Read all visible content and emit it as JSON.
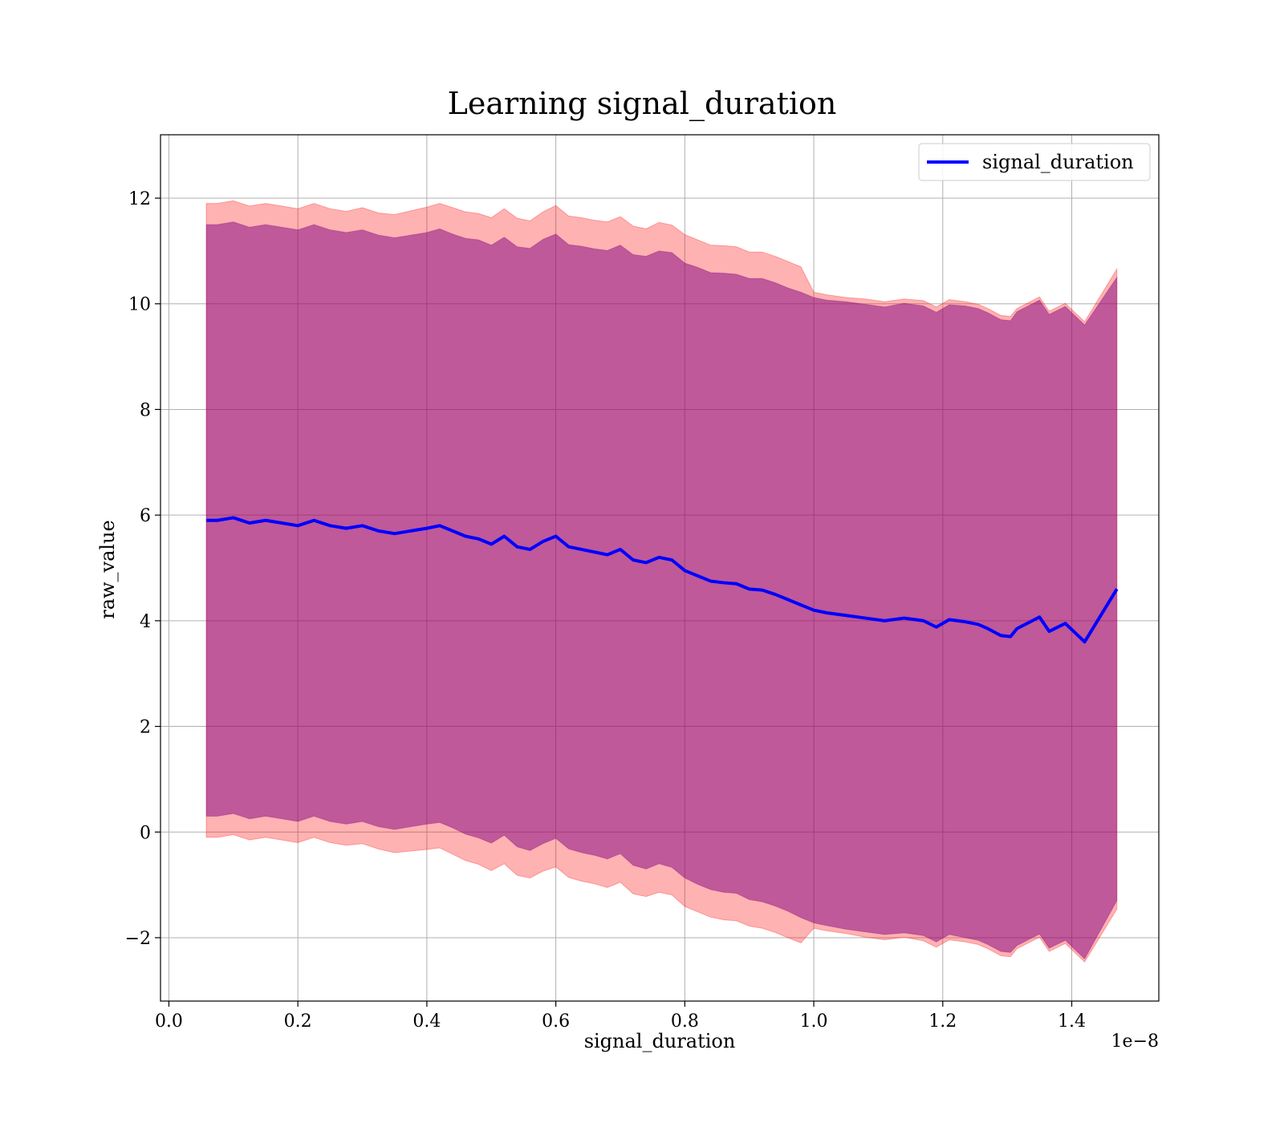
{
  "chart_data": {
    "type": "line",
    "title": "Learning signal_duration",
    "xlabel": "signal_duration",
    "ylabel": "raw_value",
    "x_offset_label": "1e−8",
    "x_scale": 1e-08,
    "xlim": [
      -0.013,
      1.535
    ],
    "ylim": [
      -3.2,
      13.2
    ],
    "x_ticks": [
      0.0,
      0.2,
      0.4,
      0.6,
      0.8,
      1.0,
      1.2,
      1.4
    ],
    "x_tick_labels": [
      "0.0",
      "0.2",
      "0.4",
      "0.6",
      "0.8",
      "1.0",
      "1.2",
      "1.4"
    ],
    "y_ticks": [
      -2,
      0,
      2,
      4,
      6,
      8,
      10,
      12
    ],
    "y_tick_labels": [
      "−2",
      "0",
      "2",
      "4",
      "6",
      "8",
      "10",
      "12"
    ],
    "grid": true,
    "legend_position": "top-right",
    "colors": {
      "line": "#0000ff",
      "band": "#ff0000",
      "inner_band": "#800080"
    },
    "series": [
      {
        "name": "signal_duration",
        "x": [
          0.058,
          0.075,
          0.1,
          0.125,
          0.15,
          0.175,
          0.2,
          0.225,
          0.25,
          0.275,
          0.3,
          0.325,
          0.35,
          0.375,
          0.4,
          0.42,
          0.44,
          0.46,
          0.48,
          0.5,
          0.52,
          0.54,
          0.56,
          0.58,
          0.6,
          0.62,
          0.64,
          0.66,
          0.68,
          0.7,
          0.72,
          0.74,
          0.76,
          0.78,
          0.8,
          0.82,
          0.84,
          0.86,
          0.88,
          0.9,
          0.92,
          0.94,
          0.96,
          0.98,
          1.0,
          1.02,
          1.05,
          1.08,
          1.11,
          1.14,
          1.17,
          1.19,
          1.21,
          1.235,
          1.255,
          1.27,
          1.29,
          1.305,
          1.315,
          1.35,
          1.365,
          1.39,
          1.42,
          1.47
        ],
        "mean": [
          5.9,
          5.9,
          5.95,
          5.85,
          5.9,
          5.85,
          5.8,
          5.9,
          5.8,
          5.75,
          5.8,
          5.7,
          5.65,
          5.7,
          5.75,
          5.8,
          5.7,
          5.6,
          5.55,
          5.45,
          5.6,
          5.4,
          5.35,
          5.5,
          5.6,
          5.4,
          5.35,
          5.3,
          5.25,
          5.35,
          5.15,
          5.1,
          5.2,
          5.15,
          4.95,
          4.85,
          4.75,
          4.72,
          4.7,
          4.6,
          4.58,
          4.5,
          4.4,
          4.3,
          4.2,
          4.15,
          4.1,
          4.05,
          4.0,
          4.05,
          4.0,
          3.88,
          4.02,
          3.98,
          3.93,
          3.85,
          3.72,
          3.7,
          3.85,
          4.07,
          3.8,
          3.95,
          3.6,
          4.6
        ],
        "std_inner": [
          5.6,
          5.6,
          5.6,
          5.6,
          5.6,
          5.6,
          5.6,
          5.6,
          5.6,
          5.6,
          5.6,
          5.6,
          5.6,
          5.6,
          5.6,
          5.62,
          5.62,
          5.64,
          5.66,
          5.66,
          5.66,
          5.68,
          5.7,
          5.72,
          5.72,
          5.72,
          5.74,
          5.74,
          5.76,
          5.76,
          5.78,
          5.8,
          5.8,
          5.82,
          5.82,
          5.84,
          5.84,
          5.86,
          5.86,
          5.88,
          5.9,
          5.9,
          5.9,
          5.92,
          5.92,
          5.92,
          5.94,
          5.94,
          5.94,
          5.96,
          5.96,
          5.96,
          5.96,
          5.98,
          5.98,
          5.98,
          5.98,
          5.98,
          6.0,
          6.0,
          6.0,
          6.0,
          6.0,
          5.9
        ],
        "std_outer": [
          6.0,
          6.0,
          6.0,
          6.0,
          6.0,
          6.0,
          6.0,
          6.0,
          6.0,
          6.0,
          6.02,
          6.02,
          6.04,
          6.06,
          6.08,
          6.1,
          6.12,
          6.14,
          6.16,
          6.18,
          6.2,
          6.22,
          6.22,
          6.24,
          6.26,
          6.26,
          6.28,
          6.28,
          6.3,
          6.3,
          6.32,
          6.32,
          6.34,
          6.34,
          6.36,
          6.36,
          6.36,
          6.38,
          6.38,
          6.38,
          6.4,
          6.4,
          6.4,
          6.4,
          6.02,
          6.02,
          6.02,
          6.04,
          6.04,
          6.04,
          6.06,
          6.06,
          6.06,
          6.06,
          6.06,
          6.06,
          6.06,
          6.06,
          6.06,
          6.06,
          6.06,
          6.06,
          6.06,
          6.06
        ]
      }
    ]
  }
}
